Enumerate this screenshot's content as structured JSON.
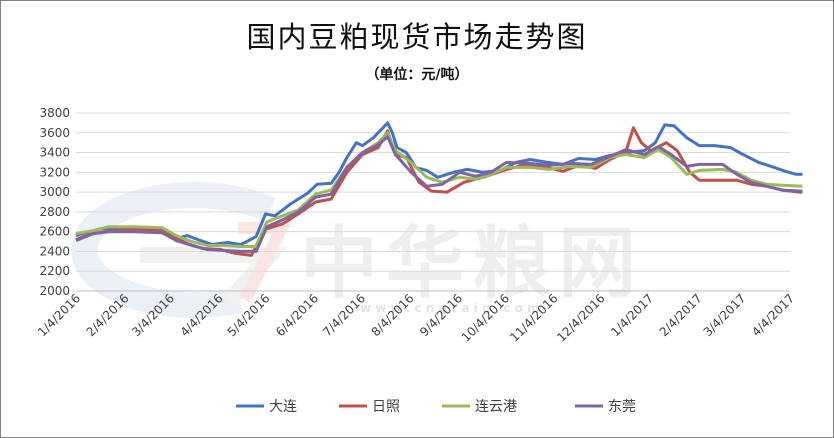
{
  "title": "国内豆粕现货市场走势图",
  "subtitle": "（单位：元/吨）",
  "watermark": {
    "text": "中华粮网",
    "url": "w w w . c n g r a i n . c o m"
  },
  "chart_data": {
    "type": "line",
    "title": "国内豆粕现货市场走势图",
    "subtitle": "（单位：元/吨）",
    "xlabel": "",
    "ylabel": "",
    "ylim": [
      2000,
      3800
    ],
    "yticks": [
      2000,
      2200,
      2400,
      2600,
      2800,
      3000,
      3200,
      3400,
      3600,
      3800
    ],
    "xticks": [
      "1/4/2016",
      "2/4/2016",
      "3/4/2016",
      "4/4/2016",
      "5/4/2016",
      "6/4/2016",
      "7/4/2016",
      "8/4/2016",
      "9/4/2016",
      "10/4/2016",
      "11/4/2016",
      "12/4/2016",
      "1/4/2017",
      "2/4/2017",
      "3/4/2017",
      "4/4/2017"
    ],
    "xrange": [
      "2016-01-04",
      "2017-04-04"
    ],
    "grid": true,
    "legend_position": "bottom",
    "series": [
      {
        "name": "大连",
        "color": "#4472C4",
        "points": [
          [
            "2016-01-04",
            2560
          ],
          [
            "2016-01-10",
            2590
          ],
          [
            "2016-01-20",
            2630
          ],
          [
            "2016-02-01",
            2640
          ],
          [
            "2016-02-20",
            2640
          ],
          [
            "2016-02-29",
            2610
          ],
          [
            "2016-03-08",
            2530
          ],
          [
            "2016-03-15",
            2560
          ],
          [
            "2016-03-22",
            2520
          ],
          [
            "2016-03-31",
            2470
          ],
          [
            "2016-04-10",
            2490
          ],
          [
            "2016-04-18",
            2470
          ],
          [
            "2016-04-22",
            2500
          ],
          [
            "2016-04-28",
            2550
          ],
          [
            "2016-05-04",
            2780
          ],
          [
            "2016-05-10",
            2760
          ],
          [
            "2016-05-20",
            2880
          ],
          [
            "2016-05-31",
            2990
          ],
          [
            "2016-06-06",
            3080
          ],
          [
            "2016-06-15",
            3090
          ],
          [
            "2016-06-20",
            3200
          ],
          [
            "2016-06-25",
            3350
          ],
          [
            "2016-07-01",
            3500
          ],
          [
            "2016-07-05",
            3470
          ],
          [
            "2016-07-12",
            3550
          ],
          [
            "2016-07-18",
            3650
          ],
          [
            "2016-07-21",
            3700
          ],
          [
            "2016-07-24",
            3600
          ],
          [
            "2016-07-27",
            3450
          ],
          [
            "2016-08-02",
            3400
          ],
          [
            "2016-08-08",
            3250
          ],
          [
            "2016-08-15",
            3220
          ],
          [
            "2016-08-22",
            3150
          ],
          [
            "2016-09-01",
            3200
          ],
          [
            "2016-09-10",
            3230
          ],
          [
            "2016-09-20",
            3200
          ],
          [
            "2016-10-01",
            3220
          ],
          [
            "2016-10-11",
            3300
          ],
          [
            "2016-10-20",
            3330
          ],
          [
            "2016-10-31",
            3300
          ],
          [
            "2016-11-10",
            3280
          ],
          [
            "2016-11-20",
            3340
          ],
          [
            "2016-12-01",
            3330
          ],
          [
            "2016-12-10",
            3370
          ],
          [
            "2016-12-20",
            3400
          ],
          [
            "2017-01-01",
            3420
          ],
          [
            "2017-01-08",
            3500
          ],
          [
            "2017-01-14",
            3680
          ],
          [
            "2017-01-20",
            3670
          ],
          [
            "2017-01-28",
            3550
          ],
          [
            "2017-02-05",
            3470
          ],
          [
            "2017-02-15",
            3470
          ],
          [
            "2017-02-25",
            3450
          ],
          [
            "2017-03-05",
            3380
          ],
          [
            "2017-03-15",
            3300
          ],
          [
            "2017-03-25",
            3250
          ],
          [
            "2017-04-01",
            3210
          ],
          [
            "2017-04-08",
            3180
          ],
          [
            "2017-04-12",
            3180
          ]
        ]
      },
      {
        "name": "日照",
        "color": "#C0504D",
        "points": [
          [
            "2016-01-04",
            2520
          ],
          [
            "2016-01-12",
            2570
          ],
          [
            "2016-01-25",
            2610
          ],
          [
            "2016-02-05",
            2620
          ],
          [
            "2016-02-25",
            2620
          ],
          [
            "2016-03-05",
            2560
          ],
          [
            "2016-03-15",
            2480
          ],
          [
            "2016-03-25",
            2430
          ],
          [
            "2016-04-05",
            2420
          ],
          [
            "2016-04-15",
            2380
          ],
          [
            "2016-04-25",
            2360
          ],
          [
            "2016-05-03",
            2620
          ],
          [
            "2016-05-15",
            2680
          ],
          [
            "2016-05-25",
            2780
          ],
          [
            "2016-06-05",
            2900
          ],
          [
            "2016-06-15",
            2930
          ],
          [
            "2016-06-25",
            3200
          ],
          [
            "2016-07-05",
            3380
          ],
          [
            "2016-07-15",
            3450
          ],
          [
            "2016-07-21",
            3620
          ],
          [
            "2016-07-26",
            3380
          ],
          [
            "2016-08-02",
            3350
          ],
          [
            "2016-08-10",
            3100
          ],
          [
            "2016-08-18",
            3010
          ],
          [
            "2016-08-28",
            3000
          ],
          [
            "2016-09-08",
            3100
          ],
          [
            "2016-09-20",
            3150
          ],
          [
            "2016-10-05",
            3230
          ],
          [
            "2016-10-15",
            3270
          ],
          [
            "2016-10-31",
            3250
          ],
          [
            "2016-11-10",
            3210
          ],
          [
            "2016-11-20",
            3270
          ],
          [
            "2016-12-01",
            3240
          ],
          [
            "2016-12-10",
            3330
          ],
          [
            "2016-12-20",
            3400
          ],
          [
            "2016-12-25",
            3650
          ],
          [
            "2016-12-30",
            3500
          ],
          [
            "2017-01-05",
            3420
          ],
          [
            "2017-01-15",
            3500
          ],
          [
            "2017-01-22",
            3420
          ],
          [
            "2017-01-30",
            3200
          ],
          [
            "2017-02-05",
            3120
          ],
          [
            "2017-02-20",
            3120
          ],
          [
            "2017-03-01",
            3120
          ],
          [
            "2017-03-10",
            3080
          ],
          [
            "2017-03-20",
            3060
          ],
          [
            "2017-03-30",
            3020
          ],
          [
            "2017-04-10",
            3000
          ],
          [
            "2017-04-12",
            3000
          ]
        ]
      },
      {
        "name": "连云港",
        "color": "#9BBB59",
        "points": [
          [
            "2016-01-04",
            2580
          ],
          [
            "2016-01-15",
            2610
          ],
          [
            "2016-01-25",
            2650
          ],
          [
            "2016-02-10",
            2650
          ],
          [
            "2016-02-28",
            2640
          ],
          [
            "2016-03-08",
            2560
          ],
          [
            "2016-03-18",
            2500
          ],
          [
            "2016-03-28",
            2460
          ],
          [
            "2016-04-08",
            2460
          ],
          [
            "2016-04-18",
            2450
          ],
          [
            "2016-04-28",
            2450
          ],
          [
            "2016-05-05",
            2700
          ],
          [
            "2016-05-15",
            2760
          ],
          [
            "2016-05-25",
            2820
          ],
          [
            "2016-06-05",
            2980
          ],
          [
            "2016-06-15",
            3020
          ],
          [
            "2016-06-25",
            3250
          ],
          [
            "2016-07-05",
            3400
          ],
          [
            "2016-07-15",
            3500
          ],
          [
            "2016-07-21",
            3600
          ],
          [
            "2016-07-26",
            3420
          ],
          [
            "2016-08-05",
            3300
          ],
          [
            "2016-08-15",
            3150
          ],
          [
            "2016-08-25",
            3100
          ],
          [
            "2016-09-05",
            3150
          ],
          [
            "2016-09-15",
            3130
          ],
          [
            "2016-09-25",
            3180
          ],
          [
            "2016-10-05",
            3250
          ],
          [
            "2016-10-20",
            3250
          ],
          [
            "2016-11-01",
            3230
          ],
          [
            "2016-11-15",
            3260
          ],
          [
            "2016-11-28",
            3250
          ],
          [
            "2016-12-10",
            3350
          ],
          [
            "2016-12-20",
            3380
          ],
          [
            "2017-01-01",
            3350
          ],
          [
            "2017-01-10",
            3430
          ],
          [
            "2017-01-18",
            3350
          ],
          [
            "2017-01-28",
            3180
          ],
          [
            "2017-02-05",
            3220
          ],
          [
            "2017-02-20",
            3230
          ],
          [
            "2017-03-01",
            3200
          ],
          [
            "2017-03-10",
            3120
          ],
          [
            "2017-03-20",
            3080
          ],
          [
            "2017-03-30",
            3070
          ],
          [
            "2017-04-12",
            3060
          ]
        ]
      },
      {
        "name": "东莞",
        "color": "#8064A2",
        "points": [
          [
            "2016-01-04",
            2510
          ],
          [
            "2016-01-15",
            2580
          ],
          [
            "2016-01-25",
            2600
          ],
          [
            "2016-02-10",
            2600
          ],
          [
            "2016-02-28",
            2590
          ],
          [
            "2016-03-08",
            2510
          ],
          [
            "2016-03-18",
            2460
          ],
          [
            "2016-03-28",
            2420
          ],
          [
            "2016-04-08",
            2410
          ],
          [
            "2016-04-18",
            2400
          ],
          [
            "2016-04-28",
            2400
          ],
          [
            "2016-05-05",
            2650
          ],
          [
            "2016-05-15",
            2720
          ],
          [
            "2016-05-25",
            2800
          ],
          [
            "2016-06-05",
            2950
          ],
          [
            "2016-06-15",
            2980
          ],
          [
            "2016-06-25",
            3250
          ],
          [
            "2016-07-05",
            3400
          ],
          [
            "2016-07-15",
            3480
          ],
          [
            "2016-07-21",
            3560
          ],
          [
            "2016-07-26",
            3380
          ],
          [
            "2016-08-05",
            3200
          ],
          [
            "2016-08-15",
            3060
          ],
          [
            "2016-08-25",
            3080
          ],
          [
            "2016-09-05",
            3200
          ],
          [
            "2016-09-15",
            3160
          ],
          [
            "2016-09-25",
            3200
          ],
          [
            "2016-10-05",
            3300
          ],
          [
            "2016-10-20",
            3290
          ],
          [
            "2016-11-01",
            3270
          ],
          [
            "2016-11-15",
            3290
          ],
          [
            "2016-11-28",
            3280
          ],
          [
            "2016-12-10",
            3360
          ],
          [
            "2016-12-20",
            3430
          ],
          [
            "2017-01-01",
            3380
          ],
          [
            "2017-01-10",
            3460
          ],
          [
            "2017-01-18",
            3380
          ],
          [
            "2017-01-28",
            3260
          ],
          [
            "2017-02-05",
            3280
          ],
          [
            "2017-02-20",
            3280
          ],
          [
            "2017-03-01",
            3180
          ],
          [
            "2017-03-10",
            3100
          ],
          [
            "2017-03-20",
            3060
          ],
          [
            "2017-03-30",
            3020
          ],
          [
            "2017-04-12",
            3010
          ]
        ]
      }
    ]
  }
}
